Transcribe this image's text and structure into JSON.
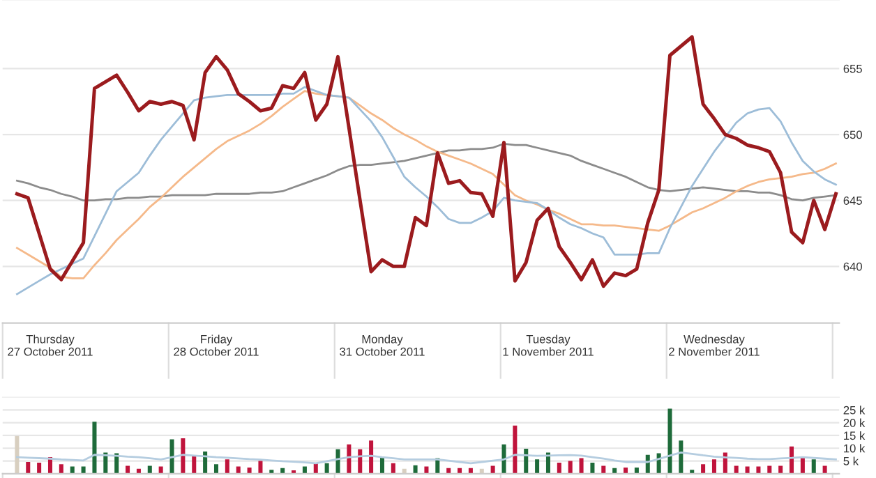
{
  "chart_data": [
    {
      "type": "line",
      "grid": "y",
      "ylim": [
        635.7,
        660.2
      ],
      "yticks": [
        640,
        645,
        650,
        655
      ],
      "categories": [
        null,
        null,
        null,
        null,
        "Thursday\n27 October 2011",
        null,
        null,
        null,
        null,
        null,
        null,
        null,
        null,
        null,
        null,
        null,
        null,
        null,
        null,
        "Friday\n28 October 2011",
        null,
        null,
        null,
        null,
        null,
        null,
        null,
        null,
        null,
        null,
        null,
        null,
        null,
        null,
        "Monday\n31 October 2011",
        null,
        null,
        null,
        null,
        null,
        null,
        null,
        null,
        null,
        null,
        null,
        null,
        null,
        null,
        "Tuesday\n1 November 2011",
        null,
        null,
        null,
        null,
        null,
        null,
        null,
        null,
        null,
        null,
        null,
        null,
        null,
        null,
        "Wednesday\n2 November 2011",
        null,
        null,
        null,
        null,
        null,
        null,
        null,
        null,
        null,
        null,
        null
      ],
      "series": [
        {
          "color": "#8c8c8c",
          "values": [
            null,
            646.5,
            646.3,
            646.0,
            645.8,
            645.5,
            645.3,
            645.0,
            645.0,
            645.1,
            645.1,
            645.2,
            645.2,
            645.3,
            645.3,
            645.4,
            645.4,
            645.4,
            645.4,
            645.5,
            645.5,
            645.5,
            645.5,
            645.6,
            645.6,
            645.7,
            646.0,
            646.3,
            646.6,
            646.9,
            647.3,
            647.6,
            647.7,
            647.7,
            647.8,
            647.9,
            648.0,
            648.2,
            648.4,
            648.6,
            648.8,
            648.8,
            648.9,
            648.9,
            649.0,
            649.3,
            649.2,
            649.2,
            649.0,
            648.8,
            648.6,
            648.4,
            648.0,
            647.7,
            647.4,
            647.1,
            646.8,
            646.4,
            646.0,
            645.8,
            645.7,
            645.8,
            645.9,
            646.0,
            645.9,
            645.8,
            645.7,
            645.7,
            645.6,
            645.6,
            645.4,
            645.1,
            645.0,
            645.2,
            645.3,
            645.4
          ]
        },
        {
          "color": "#f5b98a",
          "values": [
            null,
            641.4,
            640.9,
            640.4,
            639.9,
            639.2,
            639.1,
            639.1,
            640.1,
            641.0,
            642.0,
            642.8,
            643.6,
            644.5,
            645.2,
            646.0,
            646.8,
            647.5,
            648.2,
            648.9,
            649.5,
            649.9,
            650.3,
            650.8,
            651.4,
            652.1,
            652.7,
            653.3,
            653.1,
            653.0,
            652.9,
            652.8,
            652.2,
            651.6,
            651.1,
            650.5,
            650.0,
            649.6,
            649.1,
            648.7,
            648.4,
            648.1,
            647.8,
            647.4,
            647.0,
            646.2,
            645.4,
            645.0,
            644.7,
            644.3,
            644.0,
            643.6,
            643.2,
            643.2,
            643.1,
            643.1,
            643.0,
            642.9,
            642.8,
            642.7,
            643.1,
            643.6,
            644.1,
            644.4,
            644.8,
            645.2,
            645.7,
            646.1,
            646.4,
            646.6,
            646.7,
            646.8,
            647.0,
            647.1,
            647.4,
            647.8
          ]
        },
        {
          "color": "#9dbdd8",
          "values": [
            null,
            637.9,
            638.4,
            638.9,
            639.4,
            639.8,
            640.2,
            640.6,
            642.3,
            644.0,
            645.7,
            646.4,
            647.1,
            648.4,
            649.6,
            650.6,
            651.6,
            652.6,
            652.8,
            652.9,
            653.0,
            653.0,
            653.0,
            653.0,
            653.0,
            653.1,
            653.1,
            653.6,
            653.3,
            653.0,
            652.9,
            652.8,
            651.9,
            651.0,
            649.8,
            648.3,
            646.8,
            646.0,
            645.3,
            644.5,
            643.6,
            643.3,
            643.3,
            643.7,
            644.2,
            645.2,
            645.0,
            644.9,
            644.8,
            644.3,
            643.7,
            643.2,
            642.9,
            642.5,
            642.2,
            640.9,
            640.9,
            640.9,
            641.0,
            641.0,
            642.9,
            644.5,
            646.1,
            647.4,
            648.7,
            649.8,
            650.9,
            651.6,
            651.9,
            652.0,
            651.0,
            649.4,
            648.0,
            647.2,
            646.6,
            646.2
          ]
        },
        {
          "color": "#9b1b1e",
          "values": [
            null,
            645.5,
            645.2,
            642.5,
            639.8,
            639.0,
            640.4,
            641.8,
            653.5,
            654.0,
            654.5,
            653.2,
            651.8,
            652.5,
            652.3,
            652.5,
            652.2,
            649.6,
            654.7,
            655.9,
            654.9,
            653.1,
            652.5,
            651.8,
            652.0,
            653.7,
            653.5,
            654.7,
            651.1,
            652.3,
            655.9,
            650.5,
            645.0,
            639.6,
            640.5,
            640.0,
            640.0,
            643.7,
            643.1,
            648.6,
            646.3,
            646.5,
            645.6,
            645.5,
            643.8,
            649.4,
            638.9,
            640.3,
            643.5,
            644.4,
            641.5,
            640.3,
            639.0,
            640.5,
            638.5,
            639.5,
            639.3,
            639.8,
            643.3,
            645.8,
            656.0,
            656.7,
            657.4,
            652.3,
            651.2,
            650.0,
            649.7,
            649.2,
            649.0,
            648.7,
            647.1,
            642.6,
            641.8,
            645.0,
            642.8,
            645.5
          ]
        }
      ]
    },
    {
      "type": "bar",
      "grid": "y",
      "tick_labels": "y",
      "ylim": [
        0,
        30
      ],
      "yticks": [
        {
          "value": 5,
          "label": "5 k"
        },
        {
          "value": 10,
          "label": "10 k"
        },
        {
          "value": 15,
          "label": "15 k"
        },
        {
          "value": 20,
          "label": "20 k"
        },
        {
          "value": 25,
          "label": "25 k"
        }
      ],
      "categories": [
        null,
        null,
        null,
        null,
        null,
        null,
        null,
        null,
        null,
        null,
        null,
        null,
        null,
        null,
        null,
        null,
        null,
        null,
        null,
        null,
        null,
        null,
        null,
        null,
        null,
        null,
        null,
        null,
        null,
        null,
        null,
        null,
        null,
        null,
        null,
        null,
        null,
        null,
        null,
        null,
        null,
        null,
        null,
        null,
        null,
        null,
        null,
        null,
        null,
        null,
        null,
        null,
        null,
        null,
        null,
        null,
        null,
        null,
        null,
        null,
        null,
        null,
        null,
        null,
        null,
        null,
        null,
        null,
        null,
        null,
        null,
        null,
        null,
        null,
        null,
        null
      ],
      "series": [
        {
          "values": [
            null,
            14.8,
            4.6,
            4.3,
            6.5,
            3.7,
            2.8,
            2.8,
            20.4,
            8.3,
            8.0,
            3.1,
            1.9,
            3.1,
            2.8,
            13.5,
            13.9,
            7.0,
            8.7,
            3.7,
            5.6,
            2.8,
            2.4,
            5.0,
            1.5,
            2.2,
            1.3,
            2.8,
            4.1,
            4.1,
            9.6,
            11.5,
            9.6,
            13.0,
            6.5,
            4.1,
            1.9,
            3.3,
            2.8,
            6.1,
            2.2,
            2.2,
            2.2,
            1.9,
            3.1,
            11.5,
            18.9,
            9.8,
            5.6,
            8.3,
            4.3,
            5.0,
            6.1,
            4.3,
            3.1,
            2.2,
            2.4,
            2.4,
            7.4,
            8.0,
            25.5,
            13.0,
            1.5,
            3.7,
            5.6,
            8.3,
            3.1,
            2.8,
            2.8,
            3.1,
            3.1,
            10.7,
            6.8,
            5.6,
            3.1,
            null
          ],
          "colors": [
            null,
            "#d8cfc0",
            "#c0143c",
            "#c0143c",
            "#c0143c",
            "#c0143c",
            "#1e6b3a",
            "#1e6b3a",
            "#1e6b3a",
            "#1e6b3a",
            "#1e6b3a",
            "#c0143c",
            "#c0143c",
            "#1e6b3a",
            "#c0143c",
            "#1e6b3a",
            "#c0143c",
            "#c0143c",
            "#1e6b3a",
            "#1e6b3a",
            "#c0143c",
            "#c0143c",
            "#c0143c",
            "#c0143c",
            "#1e6b3a",
            "#1e6b3a",
            "#c0143c",
            "#1e6b3a",
            "#c0143c",
            "#1e6b3a",
            "#1e6b3a",
            "#c0143c",
            "#c0143c",
            "#c0143c",
            "#1e6b3a",
            "#c0143c",
            "#d8cfc0",
            "#1e6b3a",
            "#c0143c",
            "#1e6b3a",
            "#c0143c",
            "#c0143c",
            "#c0143c",
            "#d8cfc0",
            "#c0143c",
            "#1e6b3a",
            "#c0143c",
            "#1e6b3a",
            "#1e6b3a",
            "#1e6b3a",
            "#c0143c",
            "#c0143c",
            "#c0143c",
            "#1e6b3a",
            "#c0143c",
            "#1e6b3a",
            "#c0143c",
            "#1e6b3a",
            "#1e6b3a",
            "#1e6b3a",
            "#1e6b3a",
            "#1e6b3a",
            "#1e6b3a",
            "#c0143c",
            "#c0143c",
            "#c0143c",
            "#c0143c",
            "#c0143c",
            "#c0143c",
            "#c0143c",
            "#c0143c",
            "#c0143c",
            "#c0143c",
            "#1e6b3a",
            "#c0143c",
            null
          ]
        },
        {
          "type": "line",
          "color": "#b5cde0",
          "values": [
            null,
            6.5,
            6.3,
            6.1,
            5.9,
            5.6,
            5.4,
            5.2,
            7.4,
            7.2,
            7.0,
            6.7,
            6.5,
            6.1,
            5.6,
            6.5,
            7.4,
            7.1,
            6.8,
            6.5,
            6.3,
            6.0,
            5.7,
            5.5,
            5.2,
            4.9,
            4.7,
            4.4,
            4.1,
            4.9,
            5.7,
            6.5,
            6.8,
            7.0,
            6.5,
            6.1,
            5.6,
            5.6,
            5.6,
            5.6,
            5.1,
            4.6,
            4.1,
            4.6,
            5.1,
            5.6,
            7.4,
            7.2,
            7.0,
            7.1,
            7.2,
            7.3,
            7.1,
            6.5,
            5.9,
            5.2,
            4.6,
            4.6,
            4.6,
            5.8,
            7.1,
            8.3,
            7.8,
            7.2,
            6.7,
            6.4,
            6.2,
            5.9,
            5.7,
            5.7,
            6.0,
            6.2,
            6.5,
            6.2,
            5.9,
            5.6
          ]
        }
      ]
    }
  ]
}
